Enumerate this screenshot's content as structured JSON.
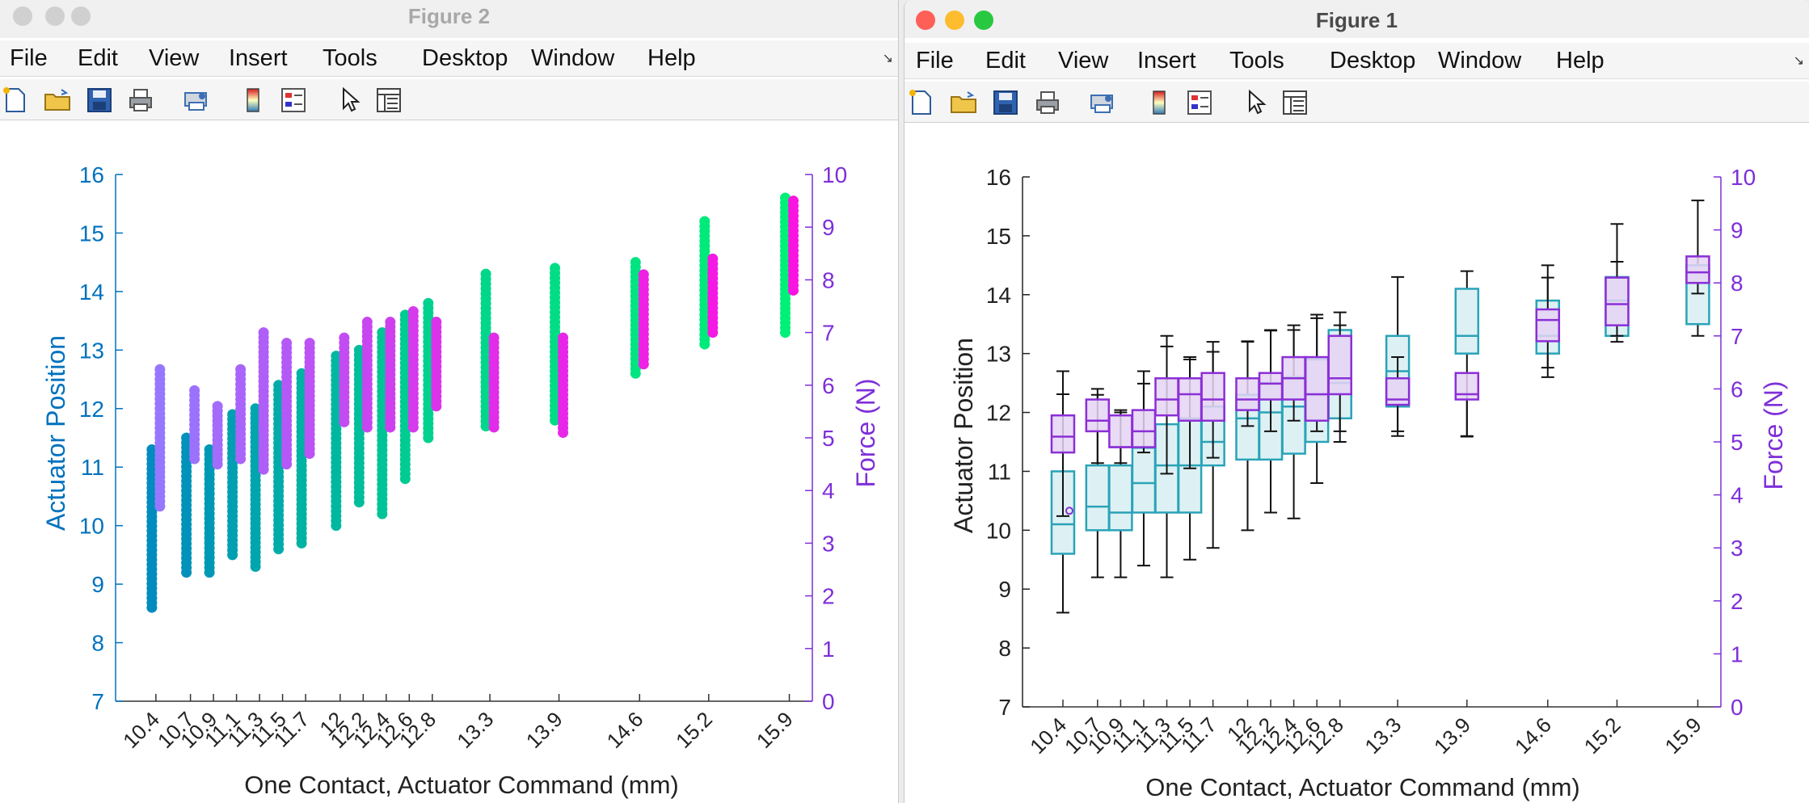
{
  "windows": {
    "fig2": {
      "title": "Figure 2",
      "menu": [
        "File",
        "Edit",
        "View",
        "Insert",
        "Tools",
        "Desktop",
        "Window",
        "Help"
      ],
      "toolbar_icons": [
        "new-file-icon",
        "open-folder-icon",
        "save-icon",
        "print-icon",
        "print-preview-icon",
        "colorbar-icon",
        "legend-icon",
        "pointer-icon",
        "property-inspector-icon"
      ]
    },
    "fig1": {
      "title": "Figure 1",
      "menu": [
        "File",
        "Edit",
        "View",
        "Insert",
        "Tools",
        "Desktop",
        "Window",
        "Help"
      ],
      "toolbar_icons": [
        "new-file-icon",
        "open-folder-icon",
        "save-icon",
        "print-icon",
        "print-preview-icon",
        "colorbar-icon",
        "legend-icon",
        "pointer-icon",
        "property-inspector-icon"
      ]
    }
  },
  "colors": {
    "position_axis": "#0072bd",
    "force_axis": "#7e2fd8",
    "box_position_edge": "#2aa3b8",
    "box_position_fill": "#d7eef2",
    "box_force_edge": "#8b2fd6",
    "box_force_fill": "#e5d3f3",
    "traffic_red": "#fe5f57",
    "traffic_yellow": "#febc2e",
    "traffic_green": "#28c840"
  },
  "chart_data": [
    {
      "type": "scatter",
      "window": "Figure 2",
      "xlabel": "One Contact, Actuator Command (mm)",
      "ylabel": "Actuator Position",
      "y2label": "Force (N)",
      "xticks": [
        10.4,
        10.7,
        10.9,
        11.1,
        11.3,
        11.5,
        11.7,
        12,
        12.2,
        12.4,
        12.6,
        12.8,
        13.3,
        13.9,
        14.6,
        15.2,
        15.9
      ],
      "xtick_labels": [
        "10.4",
        "10.7",
        "10.9",
        "11.1",
        "11.3",
        "11.5",
        "11.7",
        "12",
        "12.2",
        "12.4",
        "12.6",
        "12.8",
        "13.3",
        "13.9",
        "14.6",
        "15.2",
        "15.9"
      ],
      "ylim": [
        7,
        16
      ],
      "y2lim": [
        0,
        10
      ],
      "yticks": [
        "7",
        "8",
        "9",
        "10",
        "11",
        "12",
        "13",
        "14",
        "15",
        "16"
      ],
      "y2ticks": [
        "0",
        "1",
        "2",
        "3",
        "4",
        "5",
        "6",
        "7",
        "8",
        "9",
        "10"
      ],
      "position_ranges": [
        [
          8.6,
          11.3
        ],
        [
          9.2,
          11.5
        ],
        [
          9.2,
          11.3
        ],
        [
          9.5,
          11.9
        ],
        [
          9.3,
          12.0
        ],
        [
          9.6,
          12.4
        ],
        [
          9.7,
          12.6
        ],
        [
          10.0,
          12.9
        ],
        [
          10.4,
          13.0
        ],
        [
          10.2,
          13.3
        ],
        [
          10.8,
          13.6
        ],
        [
          11.5,
          13.8
        ],
        [
          11.7,
          14.3
        ],
        [
          11.8,
          14.4
        ],
        [
          12.6,
          14.5
        ],
        [
          13.1,
          15.2
        ],
        [
          13.3,
          15.6
        ]
      ],
      "force_ranges": [
        [
          3.7,
          6.3
        ],
        [
          4.6,
          5.9
        ],
        [
          4.5,
          5.6
        ],
        [
          4.6,
          6.3
        ],
        [
          4.4,
          7.0
        ],
        [
          4.5,
          6.8
        ],
        [
          4.7,
          6.8
        ],
        [
          5.3,
          6.9
        ],
        [
          5.2,
          7.2
        ],
        [
          5.2,
          7.2
        ],
        [
          5.2,
          7.4
        ],
        [
          5.6,
          7.2
        ],
        [
          5.2,
          6.9
        ],
        [
          5.1,
          6.9
        ],
        [
          6.4,
          8.1
        ],
        [
          7.0,
          8.4
        ],
        [
          7.8,
          9.5
        ]
      ]
    },
    {
      "type": "box",
      "window": "Figure 1",
      "xlabel": "One Contact, Actuator Command (mm)",
      "ylabel": "Actuator Position",
      "y2label": "Force (N)",
      "xticks": [
        10.4,
        10.7,
        10.9,
        11.1,
        11.3,
        11.5,
        11.7,
        12,
        12.2,
        12.4,
        12.6,
        12.8,
        13.3,
        13.9,
        14.6,
        15.2,
        15.9
      ],
      "xtick_labels": [
        "10.4",
        "10.7",
        "10.9",
        "11.1",
        "11.3",
        "11.5",
        "11.7",
        "12",
        "12.2",
        "12.4",
        "12.6",
        "12.8",
        "13.3",
        "13.9",
        "14.6",
        "15.2",
        "15.9"
      ],
      "ylim": [
        7,
        16
      ],
      "y2lim": [
        0,
        10
      ],
      "yticks": [
        "7",
        "8",
        "9",
        "10",
        "11",
        "12",
        "13",
        "14",
        "15",
        "16"
      ],
      "y2ticks": [
        "0",
        "1",
        "2",
        "3",
        "4",
        "5",
        "6",
        "7",
        "8",
        "9",
        "10"
      ],
      "position_boxes": [
        {
          "min": 8.6,
          "q1": 9.6,
          "med": 10.1,
          "q3": 11.0,
          "max": 12.7
        },
        {
          "min": 9.2,
          "q1": 10.0,
          "med": 10.4,
          "q3": 11.1,
          "max": 12.3
        },
        {
          "min": 9.2,
          "q1": 10.0,
          "med": 10.3,
          "q3": 11.1,
          "max": 12.0
        },
        {
          "min": 9.4,
          "q1": 10.3,
          "med": 10.8,
          "q3": 11.4,
          "max": 12.7
        },
        {
          "min": 9.2,
          "q1": 10.3,
          "med": 11.1,
          "q3": 11.8,
          "max": 13.3
        },
        {
          "min": 9.5,
          "q1": 10.3,
          "med": 11.1,
          "q3": 11.9,
          "max": 12.9
        },
        {
          "min": 9.7,
          "q1": 11.1,
          "med": 11.5,
          "q3": 12.1,
          "max": 13.2
        },
        {
          "min": 10.0,
          "q1": 11.2,
          "med": 11.9,
          "q3": 12.3,
          "max": 13.2
        },
        {
          "min": 10.3,
          "q1": 11.2,
          "med": 12.0,
          "q3": 12.5,
          "max": 13.4
        },
        {
          "min": 10.2,
          "q1": 11.3,
          "med": 12.1,
          "q3": 12.6,
          "max": 13.4
        },
        {
          "min": 10.8,
          "q1": 11.5,
          "med": 12.3,
          "q3": 12.9,
          "max": 13.6
        },
        {
          "min": 11.5,
          "q1": 11.9,
          "med": 12.5,
          "q3": 13.4,
          "max": 13.7
        },
        {
          "min": 11.6,
          "q1": 12.1,
          "med": 12.7,
          "q3": 13.3,
          "max": 14.3
        },
        {
          "min": 11.6,
          "q1": 13.0,
          "med": 13.3,
          "q3": 14.1,
          "max": 14.4
        },
        {
          "min": 12.6,
          "q1": 13.0,
          "med": 13.3,
          "q3": 13.9,
          "max": 14.5
        },
        {
          "min": 13.2,
          "q1": 13.3,
          "med": 13.9,
          "q3": 14.3,
          "max": 15.2
        },
        {
          "min": 13.3,
          "q1": 13.5,
          "med": 14.2,
          "q3": 14.5,
          "max": 15.6
        }
      ],
      "force_boxes": [
        {
          "min": 3.6,
          "q1": 4.8,
          "med": 5.1,
          "q3": 5.5,
          "max": 5.9,
          "outlier": 3.7
        },
        {
          "min": 4.6,
          "q1": 5.2,
          "med": 5.4,
          "q3": 5.8,
          "max": 6.0
        },
        {
          "min": 4.6,
          "q1": 4.9,
          "med": 4.9,
          "q3": 5.5,
          "max": 5.6
        },
        {
          "min": 4.8,
          "q1": 4.9,
          "med": 5.2,
          "q3": 5.6,
          "max": 6.1
        },
        {
          "min": 4.4,
          "q1": 5.5,
          "med": 5.8,
          "q3": 6.2,
          "max": 6.8
        },
        {
          "min": 4.5,
          "q1": 5.4,
          "med": 5.9,
          "q3": 6.2,
          "max": 6.6
        },
        {
          "min": 4.7,
          "q1": 5.4,
          "med": 5.8,
          "q3": 6.3,
          "max": 6.7
        },
        {
          "min": 5.3,
          "q1": 5.6,
          "med": 5.8,
          "q3": 6.2,
          "max": 6.9
        },
        {
          "min": 5.2,
          "q1": 5.8,
          "med": 6.1,
          "q3": 6.3,
          "max": 7.1
        },
        {
          "min": 5.4,
          "q1": 5.8,
          "med": 6.2,
          "q3": 6.6,
          "max": 7.2
        },
        {
          "min": 5.2,
          "q1": 5.4,
          "med": 5.9,
          "q3": 6.6,
          "max": 7.4
        },
        {
          "min": 5.2,
          "q1": 5.9,
          "med": 6.2,
          "q3": 7.0,
          "max": 7.2
        },
        {
          "min": 5.2,
          "q1": 5.7,
          "med": 5.8,
          "q3": 6.2,
          "max": 6.6
        },
        {
          "min": 5.1,
          "q1": 5.8,
          "med": 5.9,
          "q3": 6.3,
          "max": 6.3
        },
        {
          "min": 6.4,
          "q1": 6.9,
          "med": 7.3,
          "q3": 7.5,
          "max": 8.1
        },
        {
          "min": 7.0,
          "q1": 7.2,
          "med": 7.6,
          "q3": 8.1,
          "max": 8.4
        },
        {
          "min": 7.8,
          "q1": 8.0,
          "med": 8.2,
          "q3": 8.5,
          "max": 8.5
        }
      ]
    }
  ]
}
